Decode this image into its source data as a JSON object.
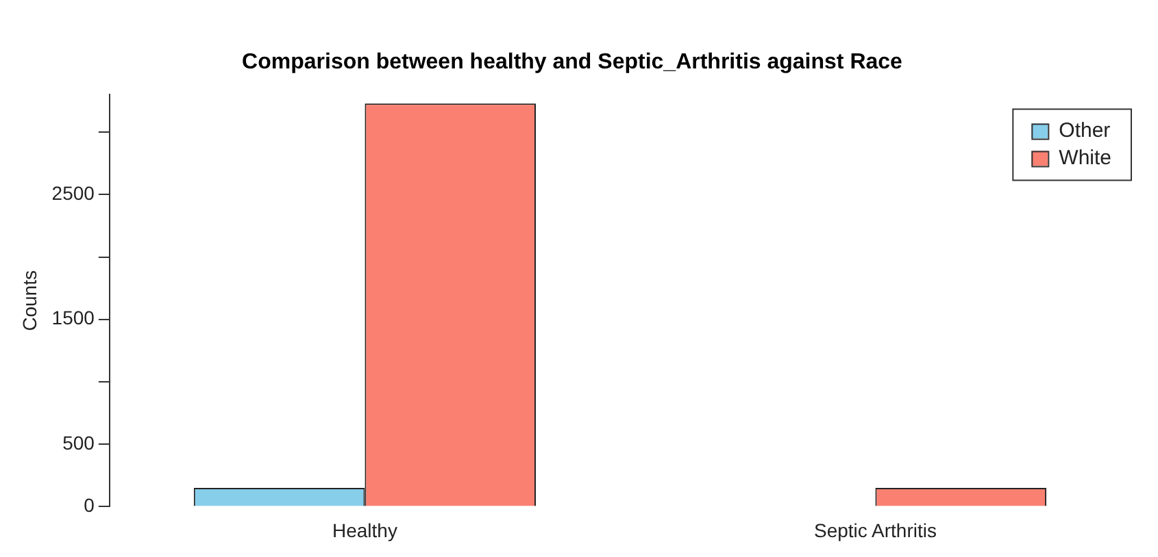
{
  "chart_data": {
    "type": "bar",
    "title": "Comparison between healthy and Septic_Arthritis against Race",
    "ylabel": "Counts",
    "categories": [
      "Healthy",
      "Septic Arthritis"
    ],
    "series": [
      {
        "name": "Other",
        "color": "#87ceeb",
        "values": [
          150,
          0
        ]
      },
      {
        "name": "White",
        "color": "#fa8072",
        "values": [
          3230,
          150
        ]
      }
    ],
    "ylim": [
      0,
      3300
    ],
    "yticks": [
      0,
      500,
      {
        "value": 1000,
        "label": null
      },
      1500,
      {
        "value": 2000,
        "label": null
      },
      2500,
      {
        "value": 3000,
        "label": null
      }
    ],
    "grid": false,
    "legend": "top right"
  }
}
